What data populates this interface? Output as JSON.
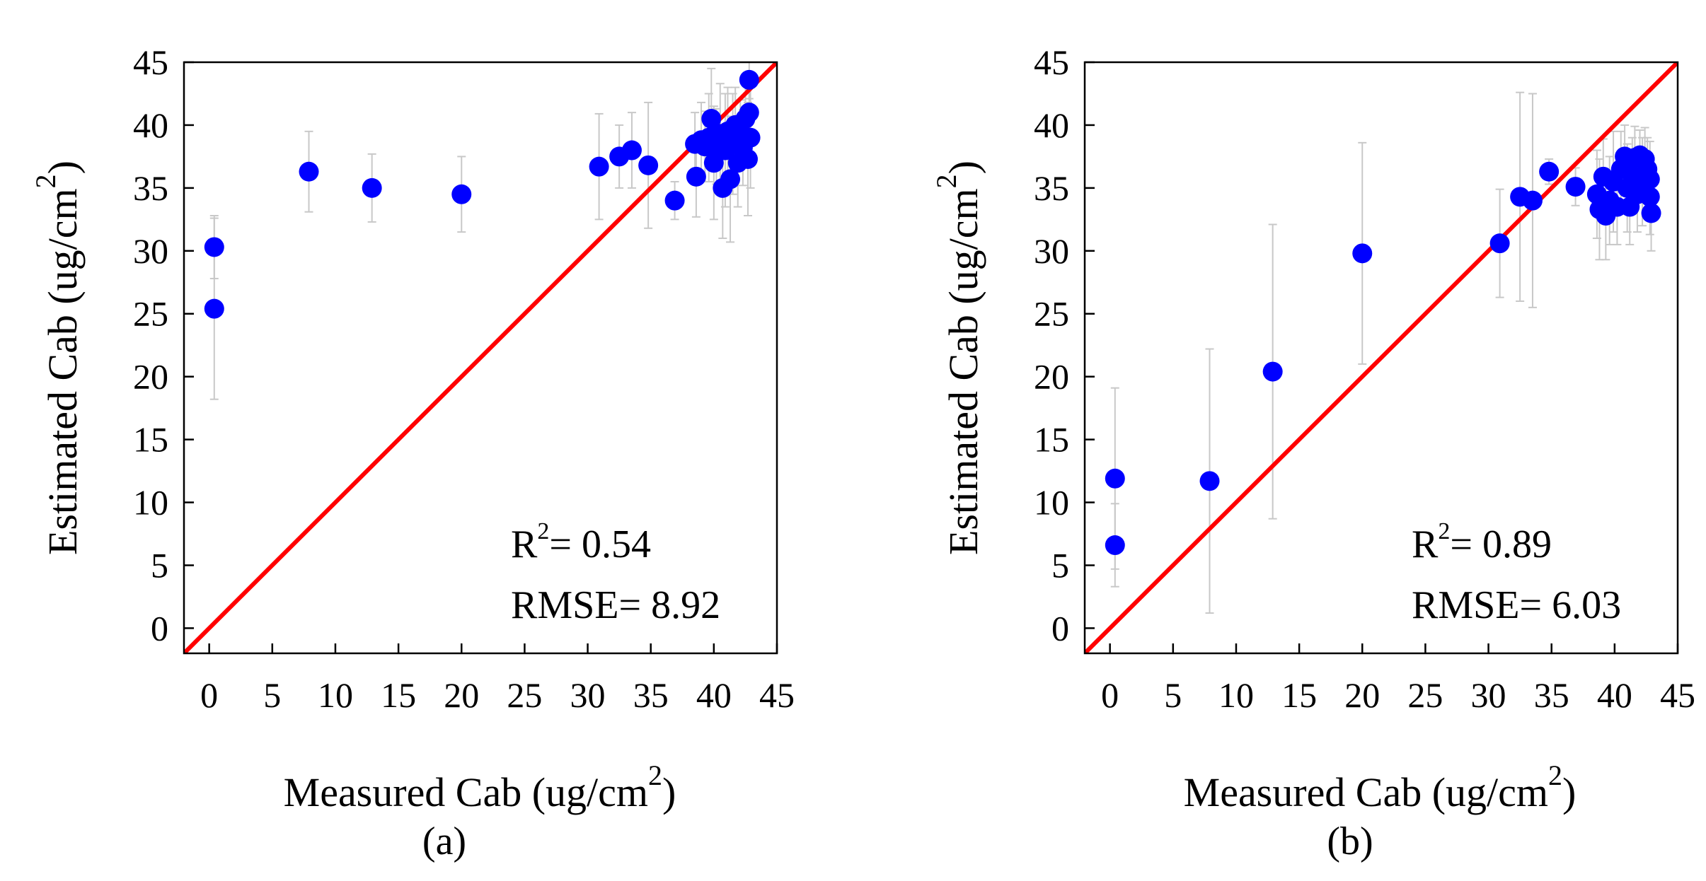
{
  "colors": {
    "point": "#0000ff",
    "line": "#ff0000",
    "errorbar": "#c8c8c8",
    "frame": "#000000"
  },
  "chart_data": [
    {
      "type": "scatter",
      "panel_label": "(a)",
      "xlabel": "Measured Cab (ug/cm",
      "xlabel_sup": "2",
      "xlabel_close": ")",
      "ylabel": "Estimated Cab (ug/cm",
      "ylabel_sup": "2",
      "ylabel_close": ")",
      "xlim": [
        -2,
        45
      ],
      "ylim": [
        -2,
        45
      ],
      "xticks": [
        0,
        5,
        10,
        15,
        20,
        25,
        30,
        35,
        40,
        45
      ],
      "yticks": [
        0,
        5,
        10,
        15,
        20,
        25,
        30,
        35,
        40,
        45
      ],
      "stats": {
        "r2_label": "R",
        "r2_sup": "2",
        "r2_value": "= 0.54",
        "rmse_text": "RMSE= 8.92"
      },
      "reference_line": "1:1",
      "points": [
        {
          "x": 0.4,
          "y": 30.3,
          "err": 2.5
        },
        {
          "x": 0.4,
          "y": 25.4,
          "err": 7.2
        },
        {
          "x": 7.9,
          "y": 36.3,
          "err": 3.2
        },
        {
          "x": 12.9,
          "y": 35.0,
          "err": 2.7
        },
        {
          "x": 20.0,
          "y": 34.5,
          "err": 3.0
        },
        {
          "x": 30.9,
          "y": 36.7,
          "err": 4.2
        },
        {
          "x": 32.5,
          "y": 37.5,
          "err": 2.5
        },
        {
          "x": 33.5,
          "y": 38.0,
          "err": 3.0
        },
        {
          "x": 34.8,
          "y": 36.8,
          "err": 5.0
        },
        {
          "x": 36.9,
          "y": 34.0,
          "err": 1.5
        },
        {
          "x": 38.5,
          "y": 38.5,
          "err": 2.5
        },
        {
          "x": 38.6,
          "y": 35.9,
          "err": 3.2
        },
        {
          "x": 39.0,
          "y": 38.8,
          "err": 3.0
        },
        {
          "x": 39.3,
          "y": 38.3,
          "err": 2.8
        },
        {
          "x": 39.6,
          "y": 39.0,
          "err": 3.5
        },
        {
          "x": 39.8,
          "y": 40.5,
          "err": 4.0
        },
        {
          "x": 40.0,
          "y": 37.0,
          "err": 4.5
        },
        {
          "x": 40.2,
          "y": 38.3,
          "err": 3.0
        },
        {
          "x": 40.5,
          "y": 39.3,
          "err": 4.0
        },
        {
          "x": 40.7,
          "y": 35.0,
          "err": 4.0
        },
        {
          "x": 40.9,
          "y": 38.0,
          "err": 4.5
        },
        {
          "x": 41.1,
          "y": 39.5,
          "err": 3.5
        },
        {
          "x": 41.3,
          "y": 35.7,
          "err": 5.0
        },
        {
          "x": 41.5,
          "y": 38.5,
          "err": 4.0
        },
        {
          "x": 41.7,
          "y": 40.0,
          "err": 3.0
        },
        {
          "x": 41.9,
          "y": 37.0,
          "err": 3.5
        },
        {
          "x": 42.1,
          "y": 39.5,
          "err": 2.5
        },
        {
          "x": 42.3,
          "y": 38.2,
          "err": 3.0
        },
        {
          "x": 42.5,
          "y": 40.5,
          "err": 3.0
        },
        {
          "x": 42.7,
          "y": 37.3,
          "err": 4.5
        },
        {
          "x": 42.8,
          "y": 41.0,
          "err": 2.5
        },
        {
          "x": 42.8,
          "y": 43.6,
          "err": 1.5
        },
        {
          "x": 42.9,
          "y": 39.0,
          "err": 4.0
        }
      ]
    },
    {
      "type": "scatter",
      "panel_label": "(b)",
      "xlabel": "Measured Cab (ug/cm",
      "xlabel_sup": "2",
      "xlabel_close": ")",
      "ylabel": "Estimated Cab (ug/cm",
      "ylabel_sup": "2",
      "ylabel_close": ")",
      "xlim": [
        -2,
        45
      ],
      "ylim": [
        -2,
        45
      ],
      "xticks": [
        0,
        5,
        10,
        15,
        20,
        25,
        30,
        35,
        40,
        45
      ],
      "yticks": [
        0,
        5,
        10,
        15,
        20,
        25,
        30,
        35,
        40,
        45
      ],
      "stats": {
        "r2_label": "R",
        "r2_sup": "2",
        "r2_value": "= 0.89",
        "rmse_text": "RMSE= 6.03"
      },
      "reference_line": "1:1",
      "points": [
        {
          "x": 0.4,
          "y": 11.9,
          "err": 7.2
        },
        {
          "x": 0.4,
          "y": 6.6,
          "err": 3.3
        },
        {
          "x": 7.9,
          "y": 11.7,
          "err": 10.5
        },
        {
          "x": 12.9,
          "y": 20.4,
          "err": 11.7
        },
        {
          "x": 20.0,
          "y": 29.8,
          "err": 8.8
        },
        {
          "x": 30.9,
          "y": 30.6,
          "err": 4.3
        },
        {
          "x": 32.5,
          "y": 34.3,
          "err": 8.3
        },
        {
          "x": 33.5,
          "y": 34.0,
          "err": 8.5
        },
        {
          "x": 34.8,
          "y": 36.3,
          "err": 1.0
        },
        {
          "x": 36.9,
          "y": 35.1,
          "err": 1.5
        },
        {
          "x": 38.6,
          "y": 34.5,
          "err": 3.5
        },
        {
          "x": 38.8,
          "y": 33.3,
          "err": 4.0
        },
        {
          "x": 39.1,
          "y": 35.9,
          "err": 3.0
        },
        {
          "x": 39.3,
          "y": 32.8,
          "err": 3.5
        },
        {
          "x": 39.6,
          "y": 34.0,
          "err": 3.5
        },
        {
          "x": 39.9,
          "y": 35.5,
          "err": 4.0
        },
        {
          "x": 40.2,
          "y": 33.5,
          "err": 3.0
        },
        {
          "x": 40.5,
          "y": 36.5,
          "err": 3.0
        },
        {
          "x": 40.8,
          "y": 37.5,
          "err": 2.5
        },
        {
          "x": 41.0,
          "y": 35.0,
          "err": 3.5
        },
        {
          "x": 41.2,
          "y": 33.5,
          "err": 3.0
        },
        {
          "x": 41.4,
          "y": 36.0,
          "err": 3.0
        },
        {
          "x": 41.6,
          "y": 37.4,
          "err": 2.5
        },
        {
          "x": 41.8,
          "y": 34.5,
          "err": 3.0
        },
        {
          "x": 42.0,
          "y": 37.6,
          "err": 2.0
        },
        {
          "x": 42.2,
          "y": 35.5,
          "err": 3.5
        },
        {
          "x": 42.4,
          "y": 37.3,
          "err": 2.5
        },
        {
          "x": 42.6,
          "y": 36.5,
          "err": 2.5
        },
        {
          "x": 42.8,
          "y": 35.7,
          "err": 3.0
        },
        {
          "x": 42.8,
          "y": 34.3,
          "err": 3.0
        },
        {
          "x": 42.9,
          "y": 33.0,
          "err": 3.0
        }
      ]
    }
  ]
}
